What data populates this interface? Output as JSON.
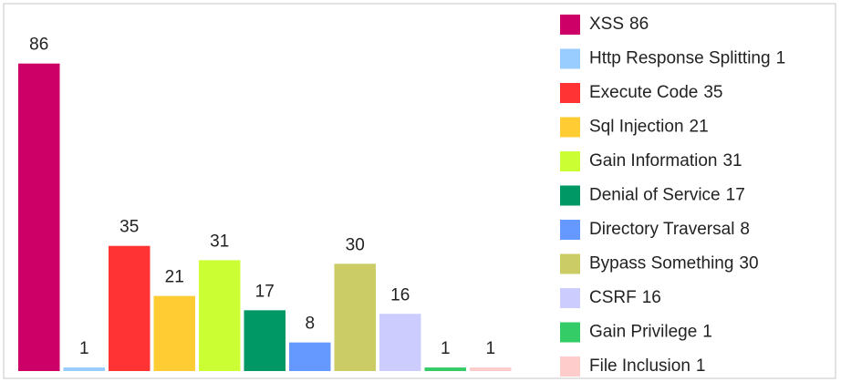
{
  "chart_data": {
    "type": "bar",
    "categories": [
      "XSS",
      "Http Response Splitting",
      "Execute Code",
      "Sql Injection",
      "Gain Information",
      "Denial of Service",
      "Directory Traversal",
      "Bypass Something",
      "CSRF",
      "Gain Privilege",
      "File Inclusion"
    ],
    "values": [
      86,
      1,
      35,
      21,
      31,
      17,
      8,
      30,
      16,
      1,
      1
    ],
    "colors": [
      "#cc0066",
      "#99ccff",
      "#ff3333",
      "#ffcc33",
      "#ccff33",
      "#009966",
      "#6699ff",
      "#cccc66",
      "#ccccff",
      "#33cc66",
      "#ffcccc"
    ],
    "ylim": [
      0,
      90
    ],
    "legend": "right"
  }
}
